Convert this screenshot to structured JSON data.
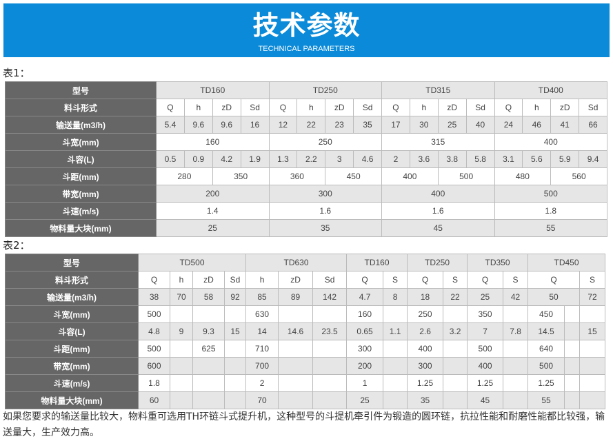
{
  "banner": {
    "title": "技术参数",
    "subtitle": "TECHNICAL PARAMETERS"
  },
  "table1": {
    "caption": "表1：",
    "rows": [
      {
        "label": "型号",
        "cells": [
          [
            "TD160",
            4
          ],
          [
            "TD250",
            4
          ],
          [
            "TD315",
            4
          ],
          [
            "TD400",
            4
          ]
        ]
      },
      {
        "label": "料斗形式",
        "cells": [
          "Q",
          "h",
          "zD",
          "Sd",
          "Q",
          "h",
          "zD",
          "Sd",
          "Q",
          "h",
          "zD",
          "Sd",
          "Q",
          "h",
          "zD",
          "Sd"
        ]
      },
      {
        "label": "输送量(m3/h)",
        "cells": [
          "5.4",
          "9.6",
          "9.6",
          "16",
          "12",
          "22",
          "23",
          "35",
          "17",
          "30",
          "25",
          "40",
          "24",
          "46",
          "41",
          "66"
        ]
      },
      {
        "label": "斗宽(mm)",
        "cells": [
          [
            "160",
            4
          ],
          [
            "250",
            4
          ],
          [
            "315",
            4
          ],
          [
            "400",
            4
          ]
        ]
      },
      {
        "label": "斗容(L)",
        "cells": [
          "0.5",
          "0.9",
          "4.2",
          "1.9",
          "1.3",
          "2.2",
          "3",
          "4.6",
          "2",
          "3.6",
          "3.8",
          "5.8",
          "3.1",
          "5.6",
          "5.9",
          "9.4"
        ]
      },
      {
        "label": "斗距(mm)",
        "cells": [
          [
            "280",
            2
          ],
          [
            "350",
            2
          ],
          [
            "360",
            2
          ],
          [
            "450",
            2
          ],
          [
            "400",
            2
          ],
          [
            "500",
            2
          ],
          [
            "480",
            2
          ],
          [
            "560",
            2
          ]
        ]
      },
      {
        "label": "带宽(mm)",
        "cells": [
          [
            "200",
            4
          ],
          [
            "300",
            4
          ],
          [
            "400",
            4
          ],
          [
            "500",
            4
          ]
        ]
      },
      {
        "label": "斗速(m/s)",
        "cells": [
          [
            "1.4",
            4
          ],
          [
            "1.6",
            4
          ],
          [
            "1.6",
            4
          ],
          [
            "1.8",
            4
          ]
        ]
      },
      {
        "label": "物料量大块(mm)",
        "cells": [
          [
            "25",
            4
          ],
          [
            "35",
            4
          ],
          [
            "45",
            4
          ],
          [
            "55",
            4
          ]
        ]
      }
    ]
  },
  "table2": {
    "caption": "表2：",
    "rows": [
      {
        "label": "型号",
        "cells": [
          [
            "TD500",
            4
          ],
          [
            "TD630",
            3
          ],
          [
            "TD160",
            2
          ],
          [
            "TD250",
            2
          ],
          [
            "TD350",
            2
          ],
          [
            "TD450",
            3
          ]
        ]
      },
      {
        "label": "料斗形式",
        "cells": [
          "Q",
          "h",
          "zD",
          "Sd",
          "h",
          "zD",
          "Sd",
          "Q",
          "S",
          "Q",
          "S",
          "Q",
          "S",
          [
            "Q",
            2
          ],
          "S"
        ]
      },
      {
        "label": "输送量(m3/h)",
        "cells": [
          "38",
          "70",
          "58",
          "92",
          "85",
          "89",
          "142",
          "4.7",
          "8",
          "18",
          "22",
          "25",
          "42",
          [
            "50",
            2
          ],
          "72"
        ]
      },
      {
        "label": "斗宽(mm)",
        "cells": [
          "500",
          "",
          "",
          "",
          "630",
          "",
          "",
          "160",
          "",
          "250",
          "",
          "350",
          "",
          "450",
          "",
          ""
        ]
      },
      {
        "label": "斗容(L)",
        "cells": [
          "4.8",
          "9",
          "9.3",
          "15",
          "14",
          "14.6",
          "23.5",
          "0.65",
          "1.1",
          "2.6",
          "3.2",
          "7",
          "7.8",
          "14.5",
          "",
          "15"
        ]
      },
      {
        "label": "斗距(mm)",
        "cells": [
          "500",
          "",
          "625",
          "",
          "710",
          "",
          "",
          "300",
          "",
          "400",
          "",
          "500",
          "",
          "640",
          "",
          ""
        ]
      },
      {
        "label": "带宽(mm)",
        "cells": [
          "600",
          "",
          "",
          "",
          "700",
          "",
          "",
          "200",
          "",
          "300",
          "",
          "400",
          "",
          "500",
          "",
          ""
        ]
      },
      {
        "label": "斗速(m/s)",
        "cells": [
          "1.8",
          "",
          "",
          "",
          "2",
          "",
          "",
          "1",
          "",
          "1.25",
          "",
          "1.25",
          "",
          "1.25",
          "",
          ""
        ]
      },
      {
        "label": "物料量大块(mm)",
        "cells": [
          "60",
          "",
          "",
          "",
          "70",
          "",
          "",
          "25",
          "",
          "35",
          "",
          "45",
          "",
          "55",
          "",
          ""
        ]
      }
    ]
  },
  "note": "如果您要求的输送量比较大，物料重可选用TH环链斗式提升机，这种型号的斗提机牵引件为锻造的圆环链，抗拉性能和耐磨性能都比较强，输送量大，生产效力高。"
}
